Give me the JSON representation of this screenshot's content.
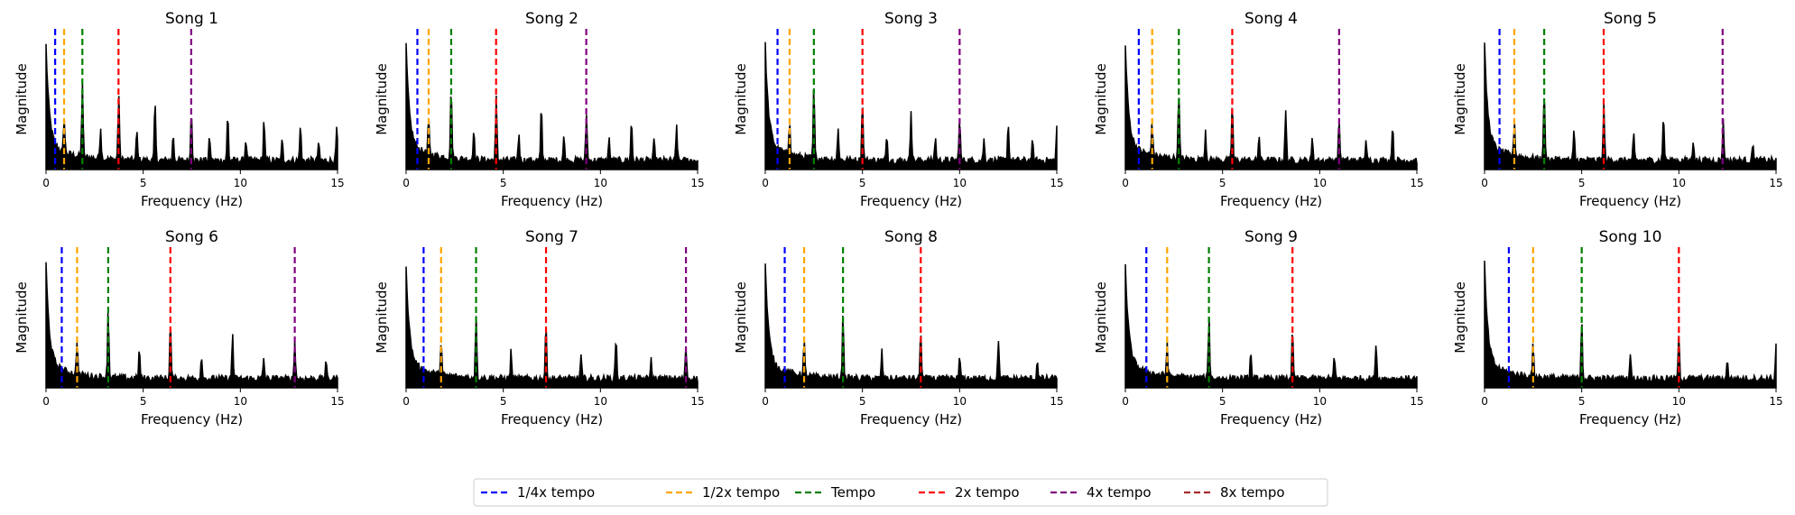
{
  "chart_data": {
    "type": "line",
    "xlabel": "Frequency (Hz)",
    "ylabel": "Magnitude",
    "xlim": [
      0,
      15
    ],
    "xticks": [
      "0",
      "5",
      "10",
      "15"
    ],
    "grid": false,
    "legend_position": "bottom-center",
    "legend": [
      {
        "label": "1/4x tempo",
        "color": "#0000ff"
      },
      {
        "label": "1/2x tempo",
        "color": "#ffa500"
      },
      {
        "label": "Tempo",
        "color": "#008000"
      },
      {
        "label": "2x tempo",
        "color": "#ff0000"
      },
      {
        "label": "4x tempo",
        "color": "#800080"
      },
      {
        "label": "8x tempo",
        "color": "#a52a2a"
      }
    ],
    "songs": [
      {
        "title": "Song 1",
        "tempo_lines": [
          0.47,
          0.93,
          1.87,
          3.73,
          7.47
        ]
      },
      {
        "title": "Song 2",
        "tempo_lines": [
          0.58,
          1.16,
          2.32,
          4.63,
          9.27
        ]
      },
      {
        "title": "Song 3",
        "tempo_lines": [
          0.63,
          1.25,
          2.5,
          5.0,
          10.0
        ]
      },
      {
        "title": "Song 4",
        "tempo_lines": [
          0.69,
          1.38,
          2.75,
          5.5,
          11.0
        ]
      },
      {
        "title": "Song 5",
        "tempo_lines": [
          0.77,
          1.53,
          3.07,
          6.13,
          12.25
        ]
      },
      {
        "title": "Song 6",
        "tempo_lines": [
          0.81,
          1.6,
          3.2,
          6.4,
          12.8
        ]
      },
      {
        "title": "Song 7",
        "tempo_lines": [
          0.9,
          1.8,
          3.6,
          7.2,
          14.4
        ]
      },
      {
        "title": "Song 8",
        "tempo_lines": [
          1.0,
          2.0,
          4.0,
          8.0
        ]
      },
      {
        "title": "Song 9",
        "tempo_lines": [
          1.08,
          2.15,
          4.3,
          8.6
        ]
      },
      {
        "title": "Song 10",
        "tempo_lines": [
          1.25,
          2.5,
          5.0,
          10.0
        ]
      }
    ]
  }
}
